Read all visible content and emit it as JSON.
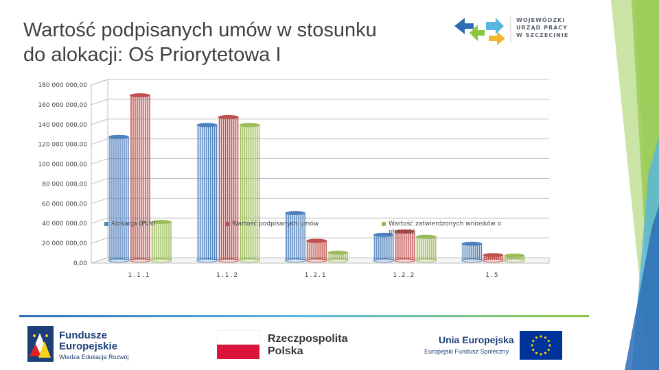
{
  "slide": {
    "title": "Wartość podpisanych umów w stosunku\ndo alokacji: Oś Priorytetowa I",
    "org_logo_text": "WOJEWÓDZKI\nURZĄD PRACY\nW SZCZECINIE"
  },
  "chart_data": {
    "type": "bar",
    "categories": [
      "1.1.1",
      "1.1.2",
      "1.2.1",
      "1.2.2",
      "1.5"
    ],
    "series": [
      {
        "name": "Alokacja (PLN)",
        "values": [
          122000000,
          134000000,
          45000000,
          23000000,
          14000000
        ],
        "color": "#4f81bd"
      },
      {
        "name": "Wartość podpisanych umów",
        "values": [
          164000000,
          142000000,
          17000000,
          26500000,
          2500000
        ],
        "color": "#c0504d"
      },
      {
        "name": "Wartość zatwierdzonych wniosków o płatność",
        "values": [
          36000000,
          134000000,
          5000000,
          21000000,
          2000000
        ],
        "color": "#9bbb59"
      }
    ],
    "yticks": [
      "0,00",
      "20 000 000,00",
      "40 000 000,00",
      "60 000 000,00",
      "80 000 000,00",
      "100 000 000,00",
      "120 000 000,00",
      "140 000 000,00",
      "160 000 000,00",
      "180 000 000,00"
    ],
    "ylim": [
      0,
      180000000
    ],
    "grid": true,
    "legend": "bottom"
  },
  "footer": {
    "fe_title": "Fundusze\nEuropejskie",
    "fe_sub": "Wiedza Edukacja Rozwój",
    "rp_title": "Rzeczpospolita\nPolska",
    "ue_title": "Unia Europejska",
    "ue_sub": "Europejski Fundusz Społeczny"
  }
}
